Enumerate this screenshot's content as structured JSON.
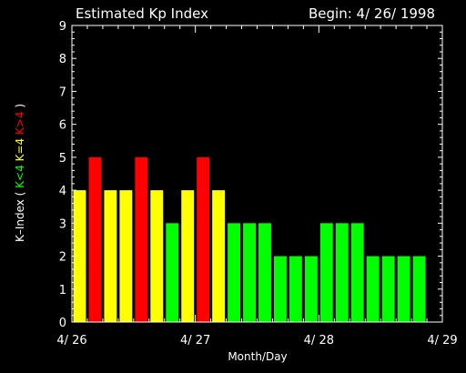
{
  "chart_data": {
    "type": "bar",
    "title": "Estimated Kp Index",
    "subtitle": "Begin: 4/ 26/ 1998",
    "xlabel": "Month/Day",
    "ylabel": {
      "prefix": "K–Index ( ",
      "low": "K<4",
      "mid": "K=4",
      "high": "K>4",
      "suffix": " )"
    },
    "ylim": [
      0,
      9
    ],
    "yticks": [
      "0",
      "1",
      "2",
      "3",
      "4",
      "5",
      "6",
      "7",
      "8",
      "9"
    ],
    "xlim": [
      0,
      24
    ],
    "xtick_labels": [
      {
        "label": "4/ 26",
        "at": 0
      },
      {
        "label": "4/ 27",
        "at": 8
      },
      {
        "label": "4/ 28",
        "at": 16
      },
      {
        "label": "4/ 29",
        "at": 24
      }
    ],
    "values": [
      4,
      5,
      4,
      4,
      5,
      4,
      3,
      4,
      5,
      4,
      3,
      3,
      3,
      2,
      2,
      2,
      3,
      3,
      3,
      2,
      2,
      2,
      2
    ],
    "colors": {
      "low": "#00ff00",
      "mid": "#ffff00",
      "high": "#ff0000",
      "axis": "#ffffff",
      "background": "#000000"
    },
    "grid": false
  }
}
